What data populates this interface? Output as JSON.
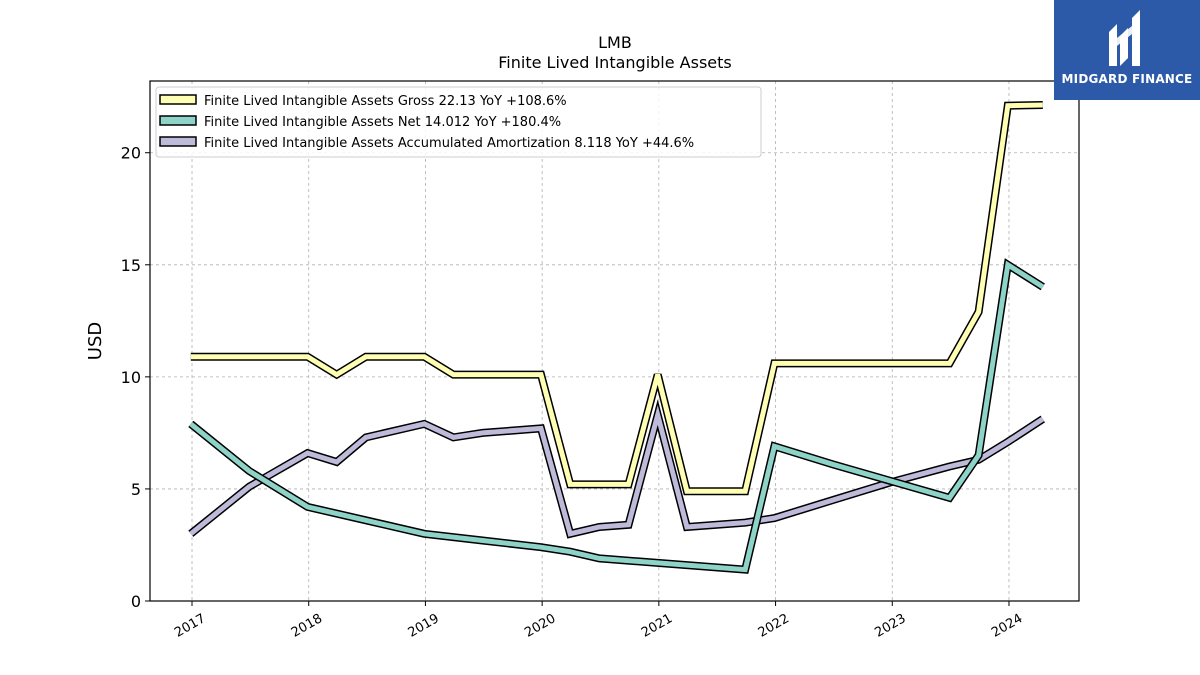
{
  "chart_data": {
    "type": "line",
    "title": "LMB",
    "subtitle": "Finite Lived Intangible Assets",
    "ylabel": "USD",
    "ylim": [
      0,
      23.2
    ],
    "yticks": [
      0,
      5,
      10,
      15,
      20
    ],
    "xlim": [
      2016.64,
      2024.6
    ],
    "xticks": [
      2017,
      2018,
      2019,
      2020,
      2021,
      2022,
      2023,
      2024
    ],
    "grid": true,
    "legend_position": "upper-left",
    "series": [
      {
        "name": "Finite Lived Intangible Assets Gross  22.13 YoY +108.6%",
        "color": "#ffffb3",
        "points": [
          [
            2016.99,
            10.9
          ],
          [
            2017.99,
            10.9
          ],
          [
            2018.24,
            10.1
          ],
          [
            2018.49,
            10.9
          ],
          [
            2018.99,
            10.9
          ],
          [
            2019.24,
            10.1
          ],
          [
            2019.99,
            10.1
          ],
          [
            2020.24,
            5.2
          ],
          [
            2020.74,
            5.2
          ],
          [
            2020.99,
            10.1
          ],
          [
            2021.24,
            4.9
          ],
          [
            2021.74,
            4.9
          ],
          [
            2021.99,
            10.6
          ],
          [
            2023.49,
            10.6
          ],
          [
            2023.74,
            12.9
          ],
          [
            2023.99,
            22.1
          ],
          [
            2024.29,
            22.13
          ]
        ]
      },
      {
        "name": "Finite Lived Intangible Assets Net  14.012 YoY +180.4%",
        "color": "#8dd3c7",
        "points": [
          [
            2016.99,
            7.9
          ],
          [
            2017.49,
            5.8
          ],
          [
            2017.99,
            4.2
          ],
          [
            2018.49,
            3.6
          ],
          [
            2018.99,
            3.0
          ],
          [
            2019.49,
            2.7
          ],
          [
            2019.99,
            2.4
          ],
          [
            2020.24,
            2.2
          ],
          [
            2020.49,
            1.9
          ],
          [
            2020.99,
            1.7
          ],
          [
            2021.74,
            1.4
          ],
          [
            2021.99,
            6.9
          ],
          [
            2022.49,
            6.1
          ],
          [
            2023.49,
            4.6
          ],
          [
            2023.74,
            6.5
          ],
          [
            2023.99,
            15.0
          ],
          [
            2024.29,
            14.012
          ]
        ]
      },
      {
        "name": "Finite Lived Intangible Assets Accumulated Amortization  8.118 YoY +44.6%",
        "color": "#bebada",
        "points": [
          [
            2016.99,
            3.0
          ],
          [
            2017.49,
            5.1
          ],
          [
            2017.99,
            6.6
          ],
          [
            2018.24,
            6.2
          ],
          [
            2018.49,
            7.3
          ],
          [
            2018.99,
            7.9
          ],
          [
            2019.24,
            7.3
          ],
          [
            2019.49,
            7.5
          ],
          [
            2019.99,
            7.7
          ],
          [
            2020.24,
            3.0
          ],
          [
            2020.49,
            3.3
          ],
          [
            2020.74,
            3.4
          ],
          [
            2020.99,
            8.3
          ],
          [
            2021.24,
            3.3
          ],
          [
            2021.74,
            3.5
          ],
          [
            2021.99,
            3.7
          ],
          [
            2022.49,
            4.5
          ],
          [
            2022.99,
            5.3
          ],
          [
            2023.49,
            6.0
          ],
          [
            2023.74,
            6.3
          ],
          [
            2023.99,
            7.1
          ],
          [
            2024.29,
            8.118
          ]
        ]
      }
    ]
  },
  "brand": {
    "name": "MIDGARD FINANCE",
    "color": "#2c5aa8",
    "icon": "midgard-logo-icon"
  }
}
